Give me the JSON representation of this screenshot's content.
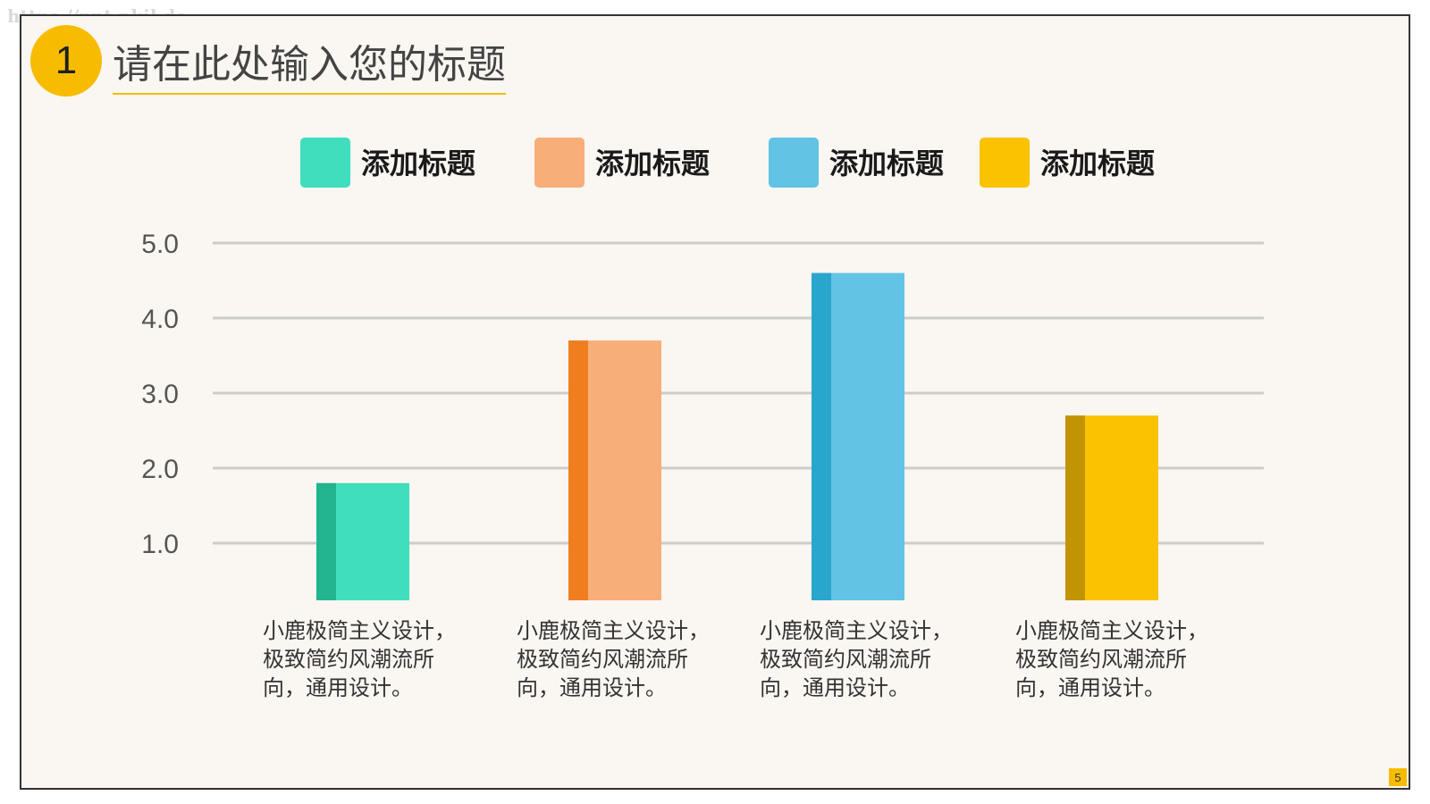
{
  "watermark": "https://ppt.pkil.de",
  "header": {
    "badge_number": "1",
    "title": "请在此处输入您的标题"
  },
  "page_number": "5",
  "descriptions": [
    [
      "小鹿极简主义设计，",
      "极致简约风潮流所",
      "向，通用设计。"
    ],
    [
      "小鹿极简主义设计，",
      "极致简约风潮流所",
      "向，通用设计。"
    ],
    [
      "小鹿极简主义设计，",
      "极致简约风潮流所",
      "向，通用设计。"
    ],
    [
      "小鹿极简主义设计，",
      "极致简约风潮流所",
      "向，通用设计。"
    ]
  ],
  "chart_data": {
    "type": "bar",
    "title": "",
    "xlabel": "",
    "ylabel": "",
    "ylim": [
      0,
      5
    ],
    "yticks": [
      "1.0",
      "2.0",
      "3.0",
      "4.0",
      "5.0"
    ],
    "grid": true,
    "legend_position": "top",
    "categories": [
      "",
      "",
      "",
      ""
    ],
    "series": [
      {
        "name": "添加标题",
        "values": [
          1.8,
          3.7,
          4.6,
          2.7
        ]
      }
    ],
    "legend": [
      {
        "label": "添加标题",
        "color": "#3fdfbd"
      },
      {
        "label": "添加标题",
        "color": "#f8ae78"
      },
      {
        "label": "添加标题",
        "color": "#62c3e4"
      },
      {
        "label": "添加标题",
        "color": "#fac200"
      }
    ],
    "bar_colors": [
      {
        "face": "#3fdfbd",
        "side": "#21b48f"
      },
      {
        "face": "#f8ae78",
        "side": "#f07e1f"
      },
      {
        "face": "#62c3e4",
        "side": "#2aa6cd"
      },
      {
        "face": "#fac200",
        "side": "#c19403"
      }
    ],
    "grid_color": "#cccccc",
    "tick_color": "#555555"
  }
}
